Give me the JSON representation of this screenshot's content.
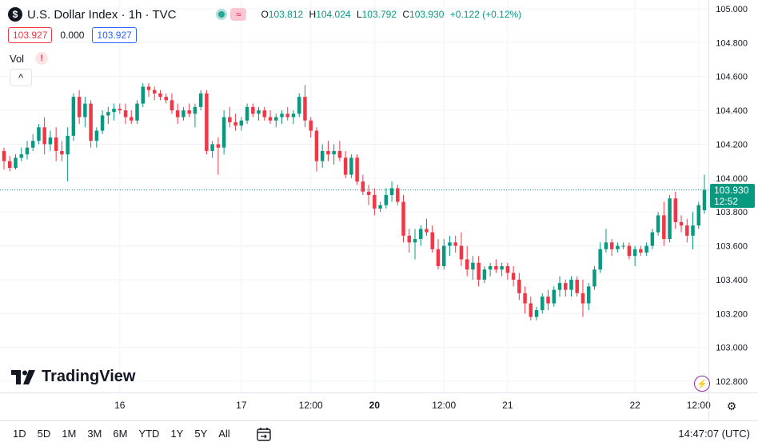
{
  "header": {
    "symbol_logo": "$",
    "title": "U.S. Dollar Index · 1h · TVC",
    "status_icon": "green-dot-icon",
    "pink_icon": "≈",
    "ohlc": {
      "o_label": "O",
      "o": "103.812",
      "h_label": "H",
      "h": "104.024",
      "l_label": "L",
      "l": "103.792",
      "c_label": "C",
      "c": "103.930",
      "change": "+0.122 (+0.12%)"
    }
  },
  "price_boxes": {
    "bid": "103.927",
    "spread": "0.000",
    "ask": "103.927"
  },
  "volume": {
    "label": "Vol",
    "warning": "!"
  },
  "collapse_glyph": "^",
  "brand": {
    "name": "TradingView"
  },
  "last_price": {
    "value": "103.930",
    "countdown": "12:52"
  },
  "bottom": {
    "ranges": [
      "1D",
      "5D",
      "1M",
      "3M",
      "6M",
      "YTD",
      "1Y",
      "5Y",
      "All"
    ],
    "clock": "14:47:07 (UTC)"
  },
  "colors": {
    "up": "#089981",
    "down": "#f23645",
    "grid": "#f0f3fa",
    "axis_text": "#131722"
  },
  "chart_data": {
    "type": "candlestick",
    "interval": "1h",
    "y_ticks": [
      "105.000",
      "104.800",
      "104.600",
      "104.400",
      "104.200",
      "104.000",
      "103.800",
      "103.600",
      "103.400",
      "103.200",
      "103.000",
      "102.800"
    ],
    "ylim": [
      102.78,
      105.03
    ],
    "x_ticks": [
      {
        "label": "16",
        "index": 20,
        "bold": false
      },
      {
        "label": "17",
        "index": 41,
        "bold": false
      },
      {
        "label": "12:00",
        "index": 53,
        "bold": false
      },
      {
        "label": "20",
        "index": 64,
        "bold": true
      },
      {
        "label": "12:00",
        "index": 76,
        "bold": false
      },
      {
        "label": "21",
        "index": 87,
        "bold": false
      },
      {
        "label": "22",
        "index": 109,
        "bold": false
      },
      {
        "label": "12:00",
        "index": 120,
        "bold": false
      }
    ],
    "last_price": 103.93,
    "candles": [
      [
        104.16,
        104.18,
        104.05,
        104.1
      ],
      [
        104.1,
        104.13,
        104.04,
        104.06
      ],
      [
        104.06,
        104.14,
        104.05,
        104.12
      ],
      [
        104.12,
        104.18,
        104.1,
        104.14
      ],
      [
        104.14,
        104.22,
        104.11,
        104.18
      ],
      [
        104.18,
        104.26,
        104.16,
        104.22
      ],
      [
        104.22,
        104.32,
        104.2,
        104.3
      ],
      [
        104.3,
        104.36,
        104.14,
        104.2
      ],
      [
        104.2,
        104.28,
        104.16,
        104.24
      ],
      [
        104.24,
        104.3,
        104.1,
        104.16
      ],
      [
        104.16,
        104.22,
        104.1,
        104.14
      ],
      [
        104.14,
        104.3,
        103.98,
        104.25
      ],
      [
        104.25,
        104.5,
        104.22,
        104.48
      ],
      [
        104.48,
        104.52,
        104.32,
        104.36
      ],
      [
        104.36,
        104.48,
        104.3,
        104.44
      ],
      [
        104.44,
        104.46,
        104.18,
        104.22
      ],
      [
        104.22,
        104.3,
        104.18,
        104.28
      ],
      [
        104.28,
        104.4,
        104.26,
        104.37
      ],
      [
        104.37,
        104.42,
        104.32,
        104.39
      ],
      [
        104.39,
        104.44,
        104.34,
        104.41
      ],
      [
        104.41,
        104.44,
        104.38,
        104.4
      ],
      [
        104.4,
        104.44,
        104.32,
        104.36
      ],
      [
        104.36,
        104.4,
        104.32,
        104.34
      ],
      [
        104.34,
        104.46,
        104.32,
        104.44
      ],
      [
        104.44,
        104.56,
        104.42,
        104.54
      ],
      [
        104.54,
        104.56,
        104.48,
        104.52
      ],
      [
        104.52,
        104.54,
        104.46,
        104.5
      ],
      [
        104.5,
        104.52,
        104.46,
        104.48
      ],
      [
        104.48,
        104.5,
        104.44,
        104.46
      ],
      [
        104.46,
        104.5,
        104.38,
        104.4
      ],
      [
        104.4,
        104.44,
        104.32,
        104.36
      ],
      [
        104.36,
        104.42,
        104.34,
        104.4
      ],
      [
        104.4,
        104.44,
        104.36,
        104.38
      ],
      [
        104.38,
        104.44,
        104.3,
        104.42
      ],
      [
        104.42,
        104.52,
        104.4,
        104.5
      ],
      [
        104.5,
        104.52,
        104.14,
        104.16
      ],
      [
        104.16,
        104.22,
        104.12,
        104.2
      ],
      [
        104.2,
        104.24,
        104.02,
        104.18
      ],
      [
        104.18,
        104.4,
        104.14,
        104.36
      ],
      [
        104.36,
        104.42,
        104.3,
        104.33
      ],
      [
        104.33,
        104.38,
        104.28,
        104.31
      ],
      [
        104.31,
        104.36,
        104.28,
        104.34
      ],
      [
        104.34,
        104.44,
        104.32,
        104.42
      ],
      [
        104.42,
        104.44,
        104.36,
        104.38
      ],
      [
        104.38,
        104.42,
        104.34,
        104.4
      ],
      [
        104.4,
        104.42,
        104.34,
        104.36
      ],
      [
        104.36,
        104.4,
        104.32,
        104.34
      ],
      [
        104.34,
        104.38,
        104.3,
        104.36
      ],
      [
        104.36,
        104.4,
        104.32,
        104.38
      ],
      [
        104.38,
        104.42,
        104.34,
        104.36
      ],
      [
        104.36,
        104.4,
        104.32,
        104.38
      ],
      [
        104.38,
        104.5,
        104.36,
        104.48
      ],
      [
        104.48,
        104.55,
        104.3,
        104.34
      ],
      [
        104.34,
        104.36,
        104.24,
        104.28
      ],
      [
        104.28,
        104.3,
        104.04,
        104.1
      ],
      [
        104.1,
        104.2,
        104.06,
        104.16
      ],
      [
        104.16,
        104.22,
        104.1,
        104.14
      ],
      [
        104.14,
        104.2,
        104.08,
        104.16
      ],
      [
        104.16,
        104.22,
        104.1,
        104.12
      ],
      [
        104.12,
        104.16,
        104.0,
        104.02
      ],
      [
        104.02,
        104.14,
        104.0,
        104.12
      ],
      [
        104.12,
        104.14,
        103.96,
        103.98
      ],
      [
        103.98,
        104.02,
        103.9,
        103.92
      ],
      [
        103.92,
        103.96,
        103.84,
        103.9
      ],
      [
        103.9,
        103.94,
        103.78,
        103.82
      ],
      [
        103.82,
        103.86,
        103.8,
        103.84
      ],
      [
        103.84,
        103.94,
        103.82,
        103.9
      ],
      [
        103.9,
        103.98,
        103.86,
        103.94
      ],
      [
        103.94,
        103.96,
        103.84,
        103.86
      ],
      [
        103.86,
        103.9,
        103.62,
        103.66
      ],
      [
        103.66,
        103.7,
        103.56,
        103.62
      ],
      [
        103.62,
        103.7,
        103.52,
        103.64
      ],
      [
        103.64,
        103.72,
        103.6,
        103.7
      ],
      [
        103.7,
        103.76,
        103.66,
        103.68
      ],
      [
        103.68,
        103.72,
        103.56,
        103.58
      ],
      [
        103.58,
        103.64,
        103.46,
        103.48
      ],
      [
        103.48,
        103.64,
        103.46,
        103.6
      ],
      [
        103.6,
        103.66,
        103.54,
        103.62
      ],
      [
        103.62,
        103.66,
        103.56,
        103.6
      ],
      [
        103.6,
        103.68,
        103.48,
        103.52
      ],
      [
        103.52,
        103.6,
        103.42,
        103.46
      ],
      [
        103.46,
        103.54,
        103.4,
        103.5
      ],
      [
        103.5,
        103.54,
        103.36,
        103.4
      ],
      [
        103.4,
        103.48,
        103.38,
        103.46
      ],
      [
        103.46,
        103.5,
        103.42,
        103.48
      ],
      [
        103.48,
        103.52,
        103.44,
        103.46
      ],
      [
        103.46,
        103.5,
        103.42,
        103.48
      ],
      [
        103.48,
        103.5,
        103.4,
        103.44
      ],
      [
        103.44,
        103.48,
        103.36,
        103.4
      ],
      [
        103.4,
        103.44,
        103.28,
        103.32
      ],
      [
        103.32,
        103.36,
        103.2,
        103.26
      ],
      [
        103.26,
        103.3,
        103.16,
        103.18
      ],
      [
        103.18,
        103.24,
        103.16,
        103.22
      ],
      [
        103.22,
        103.32,
        103.2,
        103.3
      ],
      [
        103.3,
        103.34,
        103.22,
        103.26
      ],
      [
        103.26,
        103.36,
        103.24,
        103.34
      ],
      [
        103.34,
        103.42,
        103.3,
        103.38
      ],
      [
        103.38,
        103.4,
        103.3,
        103.34
      ],
      [
        103.34,
        103.42,
        103.3,
        103.4
      ],
      [
        103.4,
        103.42,
        103.3,
        103.32
      ],
      [
        103.32,
        103.4,
        103.18,
        103.26
      ],
      [
        103.26,
        103.38,
        103.22,
        103.36
      ],
      [
        103.36,
        103.48,
        103.34,
        103.46
      ],
      [
        103.46,
        103.62,
        103.44,
        103.58
      ],
      [
        103.58,
        103.7,
        103.56,
        103.62
      ],
      [
        103.62,
        103.64,
        103.54,
        103.58
      ],
      [
        103.58,
        103.62,
        103.56,
        103.6
      ],
      [
        103.6,
        103.62,
        103.58,
        103.6
      ],
      [
        103.6,
        103.62,
        103.52,
        103.54
      ],
      [
        103.54,
        103.6,
        103.48,
        103.58
      ],
      [
        103.58,
        103.6,
        103.54,
        103.56
      ],
      [
        103.56,
        103.62,
        103.54,
        103.6
      ],
      [
        103.6,
        103.7,
        103.58,
        103.68
      ],
      [
        103.68,
        103.8,
        103.66,
        103.78
      ],
      [
        103.78,
        103.86,
        103.6,
        103.64
      ],
      [
        103.64,
        103.9,
        103.62,
        103.88
      ],
      [
        103.88,
        103.92,
        103.7,
        103.74
      ],
      [
        103.74,
        103.78,
        103.68,
        103.72
      ],
      [
        103.72,
        103.76,
        103.62,
        103.66
      ],
      [
        103.66,
        103.8,
        103.58,
        103.72
      ],
      [
        103.72,
        103.86,
        103.7,
        103.84
      ],
      [
        103.81,
        104.02,
        103.79,
        103.93
      ]
    ]
  }
}
